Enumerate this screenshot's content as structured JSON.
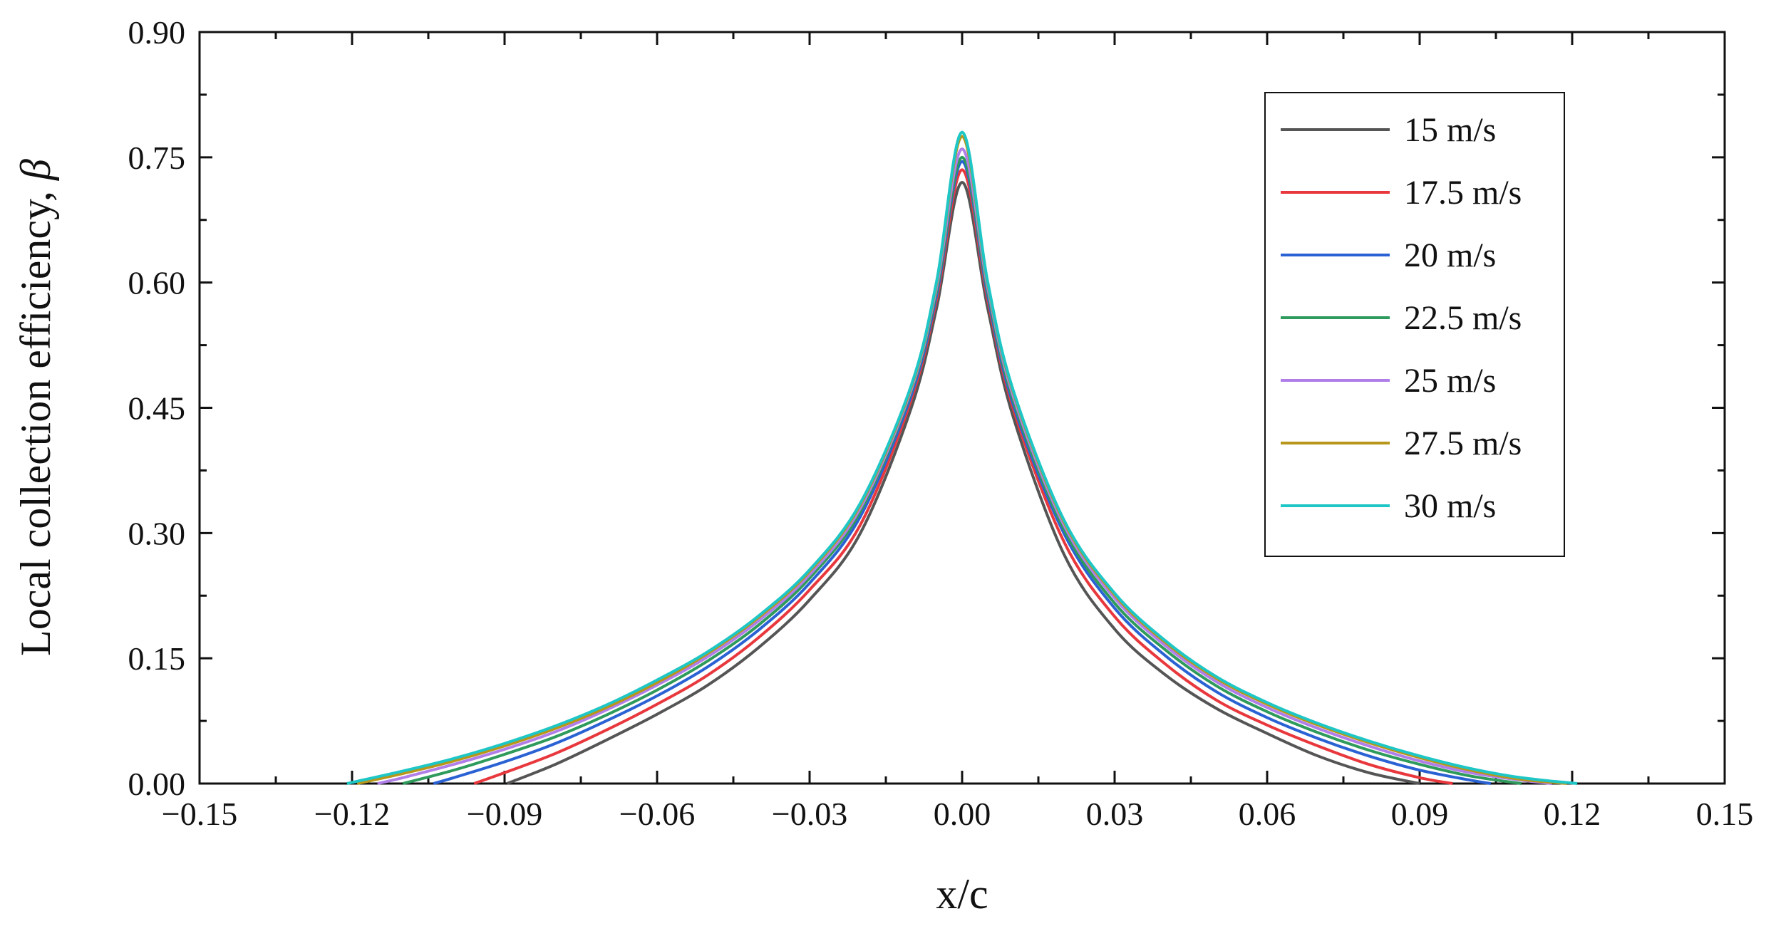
{
  "chart_data": {
    "type": "line",
    "title": "",
    "xlabel": "x/c",
    "ylabel_main": "Local collection efficiency, ",
    "ylabel_symbol": "β",
    "xlim": [
      -0.15,
      0.15
    ],
    "ylim": [
      0.0,
      0.9
    ],
    "x_ticks": [
      -0.15,
      -0.12,
      -0.09,
      -0.06,
      -0.03,
      0.0,
      0.03,
      0.06,
      0.09,
      0.12,
      0.15
    ],
    "x_tick_labels": [
      "−0.15",
      "−0.12",
      "−0.09",
      "−0.06",
      "−0.03",
      "0.00",
      "0.03",
      "0.06",
      "0.09",
      "0.12",
      "0.15"
    ],
    "y_ticks": [
      0.0,
      0.15,
      0.3,
      0.45,
      0.6,
      0.75,
      0.9
    ],
    "y_tick_labels": [
      "0.00",
      "0.15",
      "0.30",
      "0.45",
      "0.60",
      "0.75",
      "0.90"
    ],
    "grid": false,
    "legend_position": "top-right",
    "series": [
      {
        "name": "15 m/s",
        "color": "#555555",
        "x": [
          -0.0895,
          -0.08,
          -0.07,
          -0.06,
          -0.05,
          -0.04,
          -0.03,
          -0.02,
          -0.01,
          -0.005,
          0.0,
          0.005,
          0.01,
          0.02,
          0.03,
          0.04,
          0.05,
          0.06,
          0.07,
          0.08,
          0.09
        ],
        "y": [
          0.0,
          0.023,
          0.052,
          0.083,
          0.118,
          0.163,
          0.22,
          0.3,
          0.45,
          0.57,
          0.72,
          0.57,
          0.44,
          0.275,
          0.185,
          0.13,
          0.09,
          0.06,
          0.033,
          0.013,
          0.0
        ]
      },
      {
        "name": "17.5 m/s",
        "color": "#e8383d",
        "x": [
          -0.096,
          -0.09,
          -0.08,
          -0.07,
          -0.06,
          -0.05,
          -0.04,
          -0.03,
          -0.02,
          -0.01,
          -0.005,
          0.0,
          0.005,
          0.01,
          0.02,
          0.03,
          0.04,
          0.05,
          0.06,
          0.07,
          0.08,
          0.09,
          0.0965
        ],
        "y": [
          0.0,
          0.013,
          0.036,
          0.064,
          0.095,
          0.13,
          0.175,
          0.232,
          0.31,
          0.46,
          0.58,
          0.735,
          0.58,
          0.45,
          0.29,
          0.2,
          0.143,
          0.1,
          0.07,
          0.045,
          0.023,
          0.007,
          0.0
        ]
      },
      {
        "name": "20 m/s",
        "color": "#2a62d4",
        "x": [
          -0.104,
          -0.1,
          -0.09,
          -0.08,
          -0.07,
          -0.06,
          -0.05,
          -0.04,
          -0.03,
          -0.02,
          -0.01,
          -0.005,
          0.0,
          0.005,
          0.01,
          0.02,
          0.03,
          0.04,
          0.05,
          0.06,
          0.07,
          0.08,
          0.09,
          0.1,
          0.104
        ],
        "y": [
          0.0,
          0.007,
          0.026,
          0.048,
          0.075,
          0.105,
          0.14,
          0.184,
          0.24,
          0.32,
          0.465,
          0.585,
          0.745,
          0.585,
          0.455,
          0.3,
          0.21,
          0.153,
          0.11,
          0.079,
          0.054,
          0.033,
          0.016,
          0.004,
          0.0
        ]
      },
      {
        "name": "22.5 m/s",
        "color": "#2e9a5c",
        "x": [
          -0.11,
          -0.1,
          -0.09,
          -0.08,
          -0.07,
          -0.06,
          -0.05,
          -0.04,
          -0.03,
          -0.02,
          -0.01,
          -0.005,
          0.0,
          0.005,
          0.01,
          0.02,
          0.03,
          0.04,
          0.05,
          0.06,
          0.07,
          0.08,
          0.09,
          0.1,
          0.11
        ],
        "y": [
          0.0,
          0.016,
          0.035,
          0.056,
          0.082,
          0.112,
          0.147,
          0.19,
          0.246,
          0.326,
          0.47,
          0.59,
          0.75,
          0.59,
          0.46,
          0.305,
          0.216,
          0.16,
          0.117,
          0.086,
          0.061,
          0.04,
          0.023,
          0.009,
          0.0
        ]
      },
      {
        "name": "25 m/s",
        "color": "#b07ee8",
        "x": [
          -0.115,
          -0.11,
          -0.1,
          -0.09,
          -0.08,
          -0.07,
          -0.06,
          -0.05,
          -0.04,
          -0.03,
          -0.02,
          -0.01,
          -0.005,
          0.0,
          0.005,
          0.01,
          0.02,
          0.03,
          0.04,
          0.05,
          0.06,
          0.07,
          0.08,
          0.09,
          0.1,
          0.11,
          0.116
        ],
        "y": [
          0.0,
          0.007,
          0.023,
          0.041,
          0.062,
          0.088,
          0.118,
          0.152,
          0.195,
          0.25,
          0.33,
          0.472,
          0.595,
          0.76,
          0.595,
          0.465,
          0.31,
          0.222,
          0.165,
          0.122,
          0.091,
          0.066,
          0.045,
          0.027,
          0.013,
          0.004,
          0.0
        ]
      },
      {
        "name": "27.5 m/s",
        "color": "#b8961a",
        "x": [
          -0.119,
          -0.11,
          -0.1,
          -0.09,
          -0.08,
          -0.07,
          -0.06,
          -0.05,
          -0.04,
          -0.03,
          -0.02,
          -0.01,
          -0.005,
          0.0,
          0.005,
          0.01,
          0.02,
          0.03,
          0.04,
          0.05,
          0.06,
          0.07,
          0.08,
          0.09,
          0.1,
          0.11,
          0.119
        ],
        "y": [
          0.0,
          0.012,
          0.027,
          0.045,
          0.066,
          0.091,
          0.121,
          0.156,
          0.199,
          0.254,
          0.334,
          0.475,
          0.6,
          0.775,
          0.6,
          0.47,
          0.314,
          0.226,
          0.169,
          0.126,
          0.095,
          0.07,
          0.049,
          0.031,
          0.016,
          0.005,
          0.0
        ]
      },
      {
        "name": "30 m/s",
        "color": "#1ec6c6",
        "x": [
          -0.121,
          -0.11,
          -0.1,
          -0.09,
          -0.08,
          -0.07,
          -0.06,
          -0.05,
          -0.04,
          -0.03,
          -0.02,
          -0.01,
          -0.005,
          0.0,
          0.005,
          0.01,
          0.02,
          0.03,
          0.04,
          0.05,
          0.06,
          0.07,
          0.08,
          0.09,
          0.1,
          0.11,
          0.121
        ],
        "y": [
          0.0,
          0.015,
          0.03,
          0.048,
          0.069,
          0.094,
          0.124,
          0.158,
          0.201,
          0.256,
          0.336,
          0.477,
          0.602,
          0.78,
          0.602,
          0.472,
          0.316,
          0.228,
          0.171,
          0.128,
          0.097,
          0.072,
          0.051,
          0.033,
          0.018,
          0.007,
          0.0
        ]
      }
    ]
  }
}
